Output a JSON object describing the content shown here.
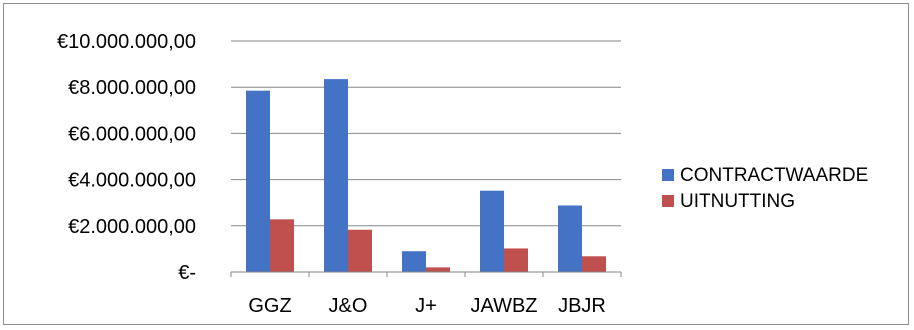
{
  "chart_data": {
    "type": "bar",
    "categories": [
      "GGZ",
      "J&O",
      "J+",
      "JAWBZ",
      "JBJR"
    ],
    "series": [
      {
        "name": "CONTRACTWAARDE",
        "color": "#4472c4",
        "values": [
          7850000,
          8350000,
          900000,
          3520000,
          2880000
        ]
      },
      {
        "name": "UITNUTTING",
        "color": "#c0504d",
        "values": [
          2280000,
          1830000,
          200000,
          1020000,
          680000
        ]
      }
    ],
    "ylim": [
      0,
      10000000
    ],
    "yticks": [
      {
        "value": 10000000,
        "label": "€10.000.000,00"
      },
      {
        "value": 8000000,
        "label": "€8.000.000,00"
      },
      {
        "value": 6000000,
        "label": "€6.000.000,00"
      },
      {
        "value": 4000000,
        "label": "€4.000.000,00"
      },
      {
        "value": 2000000,
        "label": "€2.000.000,00"
      },
      {
        "value": 0,
        "label": "€-"
      }
    ],
    "grid": true,
    "legend": "right"
  }
}
